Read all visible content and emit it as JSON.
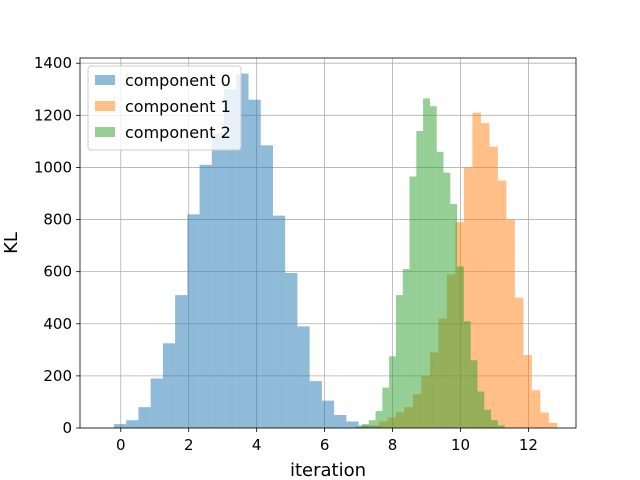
{
  "chart_data": {
    "type": "histogram",
    "title": "",
    "xlabel": "iteration",
    "ylabel": "KL",
    "xlim": [
      -1.2,
      13.4
    ],
    "ylim": [
      0,
      1420
    ],
    "xticks": [
      0,
      2,
      4,
      6,
      8,
      10,
      12
    ],
    "yticks": [
      0,
      200,
      400,
      600,
      800,
      1000,
      1200,
      1400
    ],
    "grid": true,
    "legend_position": "top-left",
    "series": [
      {
        "name": "component 0",
        "color": "#1f77b4",
        "bin_width": 0.36,
        "bins": [
          [
            -0.2,
            15
          ],
          [
            0.16,
            30
          ],
          [
            0.52,
            80
          ],
          [
            0.88,
            190
          ],
          [
            1.24,
            325
          ],
          [
            1.6,
            510
          ],
          [
            1.96,
            820
          ],
          [
            2.32,
            1010
          ],
          [
            2.68,
            1130
          ],
          [
            3.04,
            1300
          ],
          [
            3.4,
            1360
          ],
          [
            3.76,
            1260
          ],
          [
            4.12,
            1085
          ],
          [
            4.48,
            815
          ],
          [
            4.84,
            595
          ],
          [
            5.2,
            390
          ],
          [
            5.56,
            180
          ],
          [
            5.92,
            105
          ],
          [
            6.28,
            50
          ],
          [
            6.64,
            25
          ],
          [
            7.0,
            10
          ],
          [
            7.36,
            5
          ]
        ]
      },
      {
        "name": "component 1",
        "color": "#ff7f0e",
        "bin_width": 0.25,
        "bins": [
          [
            7.1,
            5
          ],
          [
            7.35,
            10
          ],
          [
            7.6,
            25
          ],
          [
            7.85,
            40
          ],
          [
            8.1,
            60
          ],
          [
            8.35,
            80
          ],
          [
            8.6,
            130
          ],
          [
            8.85,
            200
          ],
          [
            9.1,
            290
          ],
          [
            9.35,
            420
          ],
          [
            9.6,
            590
          ],
          [
            9.85,
            790
          ],
          [
            10.1,
            1000
          ],
          [
            10.35,
            1210
          ],
          [
            10.6,
            1170
          ],
          [
            10.85,
            1080
          ],
          [
            11.1,
            950
          ],
          [
            11.35,
            800
          ],
          [
            11.6,
            500
          ],
          [
            11.85,
            280
          ],
          [
            12.1,
            145
          ],
          [
            12.35,
            60
          ],
          [
            12.6,
            20
          ]
        ]
      },
      {
        "name": "component 2",
        "color": "#2ca02c",
        "bin_width": 0.2,
        "bins": [
          [
            6.9,
            5
          ],
          [
            7.1,
            15
          ],
          [
            7.3,
            30
          ],
          [
            7.5,
            65
          ],
          [
            7.7,
            155
          ],
          [
            7.9,
            275
          ],
          [
            8.1,
            510
          ],
          [
            8.3,
            610
          ],
          [
            8.5,
            965
          ],
          [
            8.7,
            1140
          ],
          [
            8.9,
            1265
          ],
          [
            9.1,
            1235
          ],
          [
            9.3,
            1060
          ],
          [
            9.5,
            980
          ],
          [
            9.7,
            860
          ],
          [
            9.9,
            620
          ],
          [
            10.1,
            410
          ],
          [
            10.3,
            260
          ],
          [
            10.5,
            140
          ],
          [
            10.7,
            70
          ],
          [
            10.9,
            30
          ],
          [
            11.1,
            10
          ]
        ]
      }
    ]
  }
}
